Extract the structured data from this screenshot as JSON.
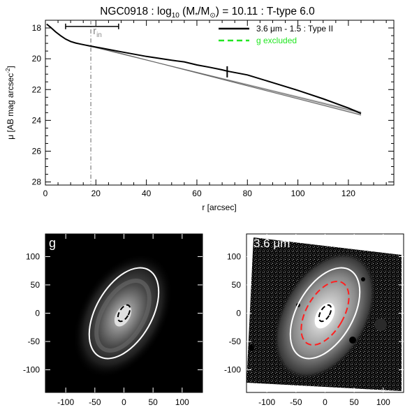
{
  "title": {
    "galaxy": "NGC0918 : log",
    "sub10": "10",
    "mass_open": " (M",
    "star_sub": "*",
    "mass_mid": "/M",
    "sun_sub": "⊙",
    "mass_close": ") = 10.11 : T-type 6.0"
  },
  "chart_data": [
    {
      "type": "line",
      "xlabel": "r [arcsec]",
      "ylabel_main": "μ [AB mag arcsec",
      "ylabel_sup": "-2",
      "ylabel_end": "]",
      "xlim": [
        0,
        138
      ],
      "ylim": [
        28.2,
        17.5
      ],
      "y_inverted": true,
      "x_ticks": [
        0,
        20,
        40,
        60,
        80,
        100,
        120
      ],
      "y_ticks": [
        18,
        20,
        22,
        24,
        26,
        28
      ],
      "grid": false,
      "legend_position": "top-right",
      "series": [
        {
          "name": "3.6 μm - 1.5 : Type II",
          "color": "#000000",
          "style": "solid",
          "x": [
            0.5,
            2,
            4,
            6,
            8,
            10,
            12,
            14,
            16,
            18,
            22,
            30,
            40,
            50,
            55,
            60,
            65,
            70,
            72,
            80,
            90,
            100,
            110,
            120,
            125
          ],
          "y": [
            17.75,
            17.95,
            18.25,
            18.5,
            18.72,
            18.88,
            18.98,
            19.05,
            19.12,
            19.18,
            19.3,
            19.55,
            19.85,
            20.1,
            20.2,
            20.4,
            20.55,
            20.72,
            20.8,
            21.05,
            21.55,
            22.05,
            22.6,
            23.2,
            23.55
          ]
        },
        {
          "name": "g excluded",
          "color": "#22e622",
          "style": "dashed",
          "x": [],
          "y": []
        }
      ],
      "fit_lines": [
        {
          "x": [
            18,
            125
          ],
          "y": [
            19.2,
            23.5
          ]
        },
        {
          "x": [
            18,
            125
          ],
          "y": [
            19.15,
            23.65
          ]
        }
      ],
      "annotations": {
        "r_in_label": "r",
        "r_in_sub": "in",
        "r_in_value": 18,
        "r_in_range": [
          8,
          29
        ],
        "r_in_bar_y": 17.9,
        "break_radius": 72,
        "break_mu": 20.85
      }
    },
    {
      "type": "image",
      "panel_label": "g",
      "xlim": [
        -135,
        135
      ],
      "ylim": [
        -140,
        140
      ],
      "x_ticks": [
        -100,
        -50,
        0,
        50,
        100
      ],
      "y_ticks": [
        -100,
        -50,
        0,
        50,
        100
      ],
      "outer_ellipse": {
        "cx": 0,
        "cy": 0,
        "rx": 48,
        "ry": 88,
        "angle_deg": -30,
        "color": "#ffffff"
      },
      "inner_ellipse": {
        "cx": 0,
        "cy": 0,
        "rx": 8,
        "ry": 16,
        "angle_deg": -30,
        "color": "#000000"
      }
    },
    {
      "type": "image",
      "panel_label_main": "3.6 ",
      "panel_label_unit": "μm",
      "xlim": [
        -135,
        135
      ],
      "ylim": [
        -140,
        140
      ],
      "x_ticks": [
        -100,
        -50,
        0,
        50,
        100
      ],
      "y_ticks": [
        -100,
        -50,
        0,
        50,
        100
      ],
      "outer_ellipse": {
        "cx": 0,
        "cy": 0,
        "rx": 48,
        "ry": 88,
        "angle_deg": -30,
        "color": "#ffffff"
      },
      "mid_ellipse": {
        "cx": 0,
        "cy": 0,
        "rx": 32,
        "ry": 62,
        "angle_deg": -30,
        "color": "#ff2020"
      },
      "inner_ellipse": {
        "cx": 0,
        "cy": 0,
        "rx": 8,
        "ry": 16,
        "angle_deg": -30,
        "color": "#000000"
      }
    }
  ]
}
